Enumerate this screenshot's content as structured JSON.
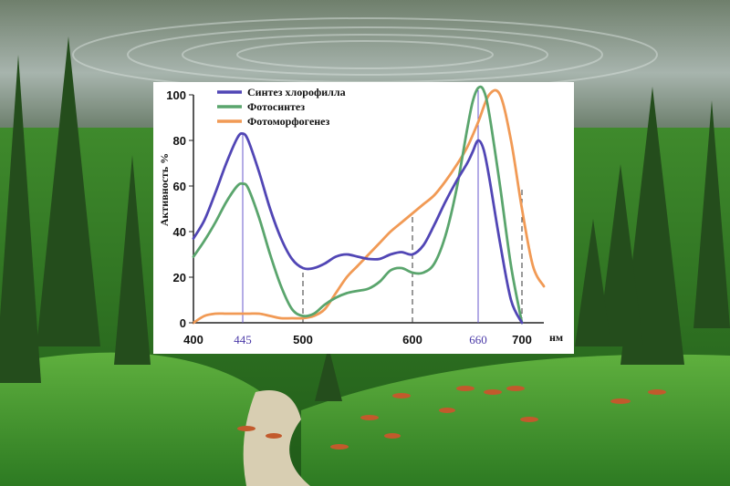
{
  "chart_data": {
    "type": "line",
    "title": "",
    "xlabel": "нм",
    "ylabel": "Активность %",
    "xlim": [
      400,
      720
    ],
    "ylim": [
      0,
      105
    ],
    "yticks": [
      0,
      20,
      40,
      60,
      80,
      100
    ],
    "xticks": [
      400,
      445,
      500,
      600,
      660,
      700
    ],
    "xticks_highlighted": [
      445,
      660
    ],
    "reference_lines": [
      {
        "x": 445,
        "y": 83,
        "style": "solid"
      },
      {
        "x": 500,
        "y": 22,
        "style": "dashed"
      },
      {
        "x": 600,
        "y": 47,
        "style": "dashed"
      },
      {
        "x": 660,
        "y": 102,
        "style": "solid"
      },
      {
        "x": 700,
        "y": 60,
        "style": "dashed"
      }
    ],
    "legend_position": "top-left",
    "series": [
      {
        "name": "Синтез хлорофилла",
        "color": "#5146b5",
        "x": [
          400,
          410,
          420,
          430,
          440,
          445,
          450,
          460,
          470,
          480,
          490,
          500,
          510,
          520,
          530,
          540,
          550,
          560,
          570,
          580,
          590,
          600,
          610,
          620,
          630,
          640,
          650,
          655,
          660,
          665,
          670,
          680,
          690,
          700
        ],
        "y": [
          37,
          45,
          57,
          70,
          81,
          83,
          80,
          66,
          50,
          37,
          28,
          24,
          24,
          26,
          29,
          30,
          29,
          28,
          28,
          30,
          31,
          30,
          34,
          43,
          53,
          62,
          70,
          75,
          80,
          76,
          64,
          35,
          10,
          0
        ]
      },
      {
        "name": "Фотосинтез",
        "color": "#5aa56d",
        "x": [
          400,
          410,
          420,
          430,
          440,
          445,
          450,
          460,
          470,
          480,
          490,
          500,
          510,
          520,
          530,
          540,
          550,
          560,
          570,
          580,
          590,
          600,
          610,
          620,
          630,
          640,
          650,
          655,
          660,
          665,
          670,
          680,
          690,
          700
        ],
        "y": [
          29,
          36,
          44,
          53,
          60,
          61,
          59,
          46,
          30,
          16,
          6,
          3,
          4,
          8,
          11,
          13,
          14,
          15,
          18,
          23,
          24,
          22,
          22,
          26,
          38,
          58,
          85,
          97,
          103,
          102,
          92,
          60,
          25,
          0
        ]
      },
      {
        "name": "Фотоморфогенез",
        "color": "#f19a55",
        "x": [
          400,
          410,
          420,
          430,
          440,
          450,
          460,
          470,
          480,
          490,
          500,
          510,
          520,
          530,
          540,
          550,
          560,
          570,
          580,
          590,
          600,
          610,
          620,
          630,
          640,
          650,
          660,
          670,
          680,
          690,
          700,
          710,
          720
        ],
        "y": [
          0,
          3,
          4,
          4,
          4,
          4,
          4,
          3,
          2,
          2,
          2,
          3,
          6,
          13,
          20,
          25,
          30,
          35,
          40,
          44,
          48,
          52,
          56,
          62,
          69,
          77,
          88,
          100,
          100,
          80,
          50,
          25,
          16
        ]
      }
    ]
  }
}
